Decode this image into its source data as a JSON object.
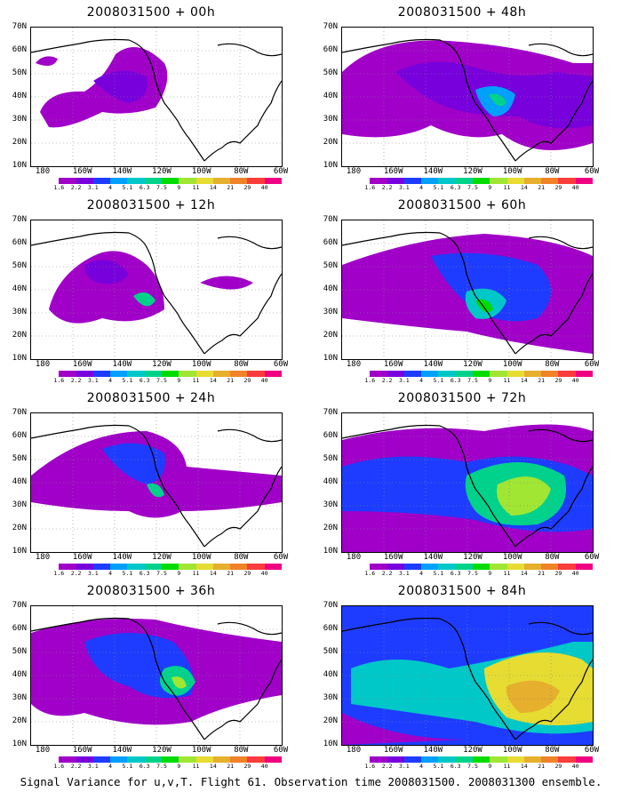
{
  "caption": "Signal Variance for u,v,T. Flight 61. Observation time 2008031500. 2008031300 ensemble.",
  "y_labels": [
    "70N",
    "60N",
    "50N",
    "40N",
    "30N",
    "20N",
    "10N"
  ],
  "x_labels": [
    "180",
    "160W",
    "140W",
    "120W",
    "100W",
    "80W",
    "60W"
  ],
  "colorbar": {
    "labels": [
      "1.6",
      "2.2",
      "3.1",
      "4",
      "5.1",
      "6.3",
      "7.5",
      "9",
      "11",
      "14",
      "21",
      "29",
      "40"
    ],
    "colors": [
      "#ffffff",
      "#a000c8",
      "#7800dc",
      "#1e3cff",
      "#00a0ff",
      "#00c8c8",
      "#00d28c",
      "#00dc00",
      "#a0e632",
      "#e6dc32",
      "#e6af2d",
      "#f08228",
      "#fa3c3c",
      "#f00082"
    ]
  },
  "panels": [
    {
      "title": "2008031500 + 00h",
      "col": 0,
      "row": 0
    },
    {
      "title": "2008031500 + 48h",
      "col": 1,
      "row": 0
    },
    {
      "title": "2008031500 + 12h",
      "col": 0,
      "row": 1
    },
    {
      "title": "2008031500 + 60h",
      "col": 1,
      "row": 1
    },
    {
      "title": "2008031500 + 24h",
      "col": 0,
      "row": 2
    },
    {
      "title": "2008031500 + 72h",
      "col": 1,
      "row": 2
    },
    {
      "title": "2008031500 + 36h",
      "col": 0,
      "row": 3
    },
    {
      "title": "2008031500 + 84h",
      "col": 1,
      "row": 3
    }
  ]
}
